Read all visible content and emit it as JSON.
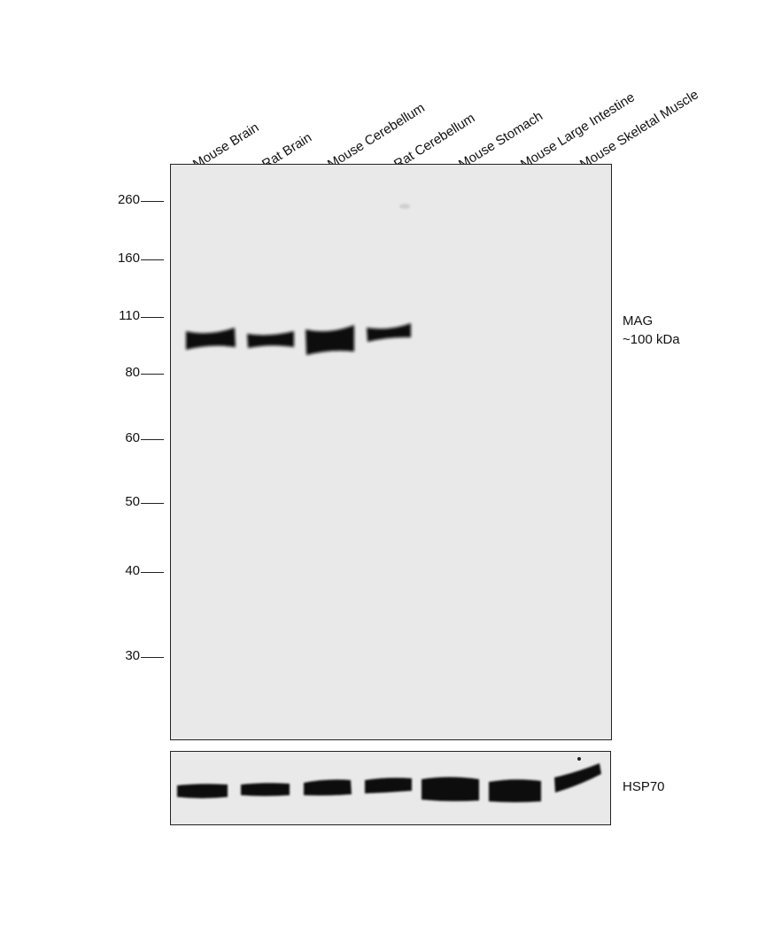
{
  "lanes": [
    "Mouse Brain",
    "Rat Brain",
    "Mouse Cerebellum",
    "Rat Cerebellum",
    "Mouse Stomach",
    "Mouse Large Intestine",
    "Mouse Skeletal Muscle"
  ],
  "mw_markers": [
    "260",
    "160",
    "110",
    "80",
    "60",
    "50",
    "40",
    "30"
  ],
  "target": {
    "name": "MAG",
    "size": "~100 kDa"
  },
  "loading_control": "HSP70"
}
